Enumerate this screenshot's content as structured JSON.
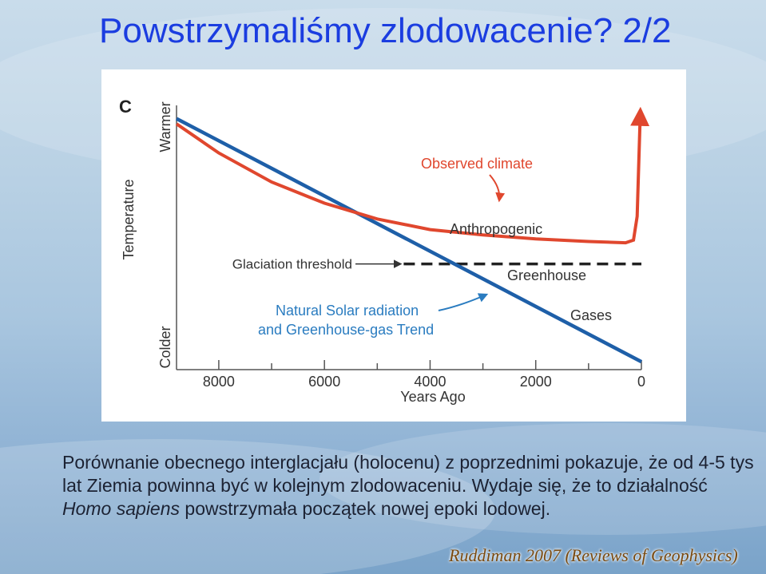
{
  "slide": {
    "title": "Powstrzymaliśmy zlodowacenie? 2/2",
    "body_part1": "Porównanie obecnego interglacjału (holocenu) z poprzednimi pokazuje, że od 4-5 tys lat Ziemia powinna być w kolejnym zlodowaceniu. Wydaje się, że to działalność ",
    "body_italic": "Homo sapiens",
    "body_part2": " powstrzymała początek nowej epoki lodowej.",
    "citation": "Ruddiman 2007 (Reviews of Geophysics)"
  },
  "colors": {
    "title": "#1b3de0",
    "observed": "#e0472e",
    "natural": "#1e5fa8",
    "annotation_blue": "#2a7cc0",
    "threshold": "#222222",
    "citation": "#7a4a10"
  },
  "chart_data": {
    "type": "line",
    "panel_label": "C",
    "xlabel": "Years Ago",
    "ylabel": "Temperature",
    "y_top_label": "Warmer",
    "y_bottom_label": "Colder",
    "x_ticks": [
      "8000",
      "6000",
      "4000",
      "2000",
      "0"
    ],
    "xlim": [
      8800,
      0
    ],
    "ylim": [
      0,
      100
    ],
    "x_reversed": true,
    "grid": false,
    "series": [
      {
        "name": "Observed climate",
        "color": "#e0472e",
        "x": [
          8800,
          8000,
          7000,
          6000,
          5000,
          4000,
          3000,
          2000,
          1000,
          300,
          150,
          80,
          50,
          20
        ],
        "y": [
          93,
          82,
          71,
          63,
          57,
          53,
          51,
          49.5,
          48.5,
          48,
          49,
          58,
          78,
          98
        ]
      },
      {
        "name": "Natural Solar radiation and Greenhouse-gas Trend",
        "color": "#1e5fa8",
        "x": [
          8800,
          0
        ],
        "y": [
          95,
          3
        ]
      }
    ],
    "threshold": {
      "label": "Glaciation threshold",
      "y": 40,
      "x_from": 4500,
      "x_to": 0
    },
    "annotations": [
      "Observed climate",
      "Anthropogenic",
      "Greenhouse",
      "Gases",
      "Natural Solar radiation",
      "and Greenhouse-gas Trend"
    ]
  }
}
